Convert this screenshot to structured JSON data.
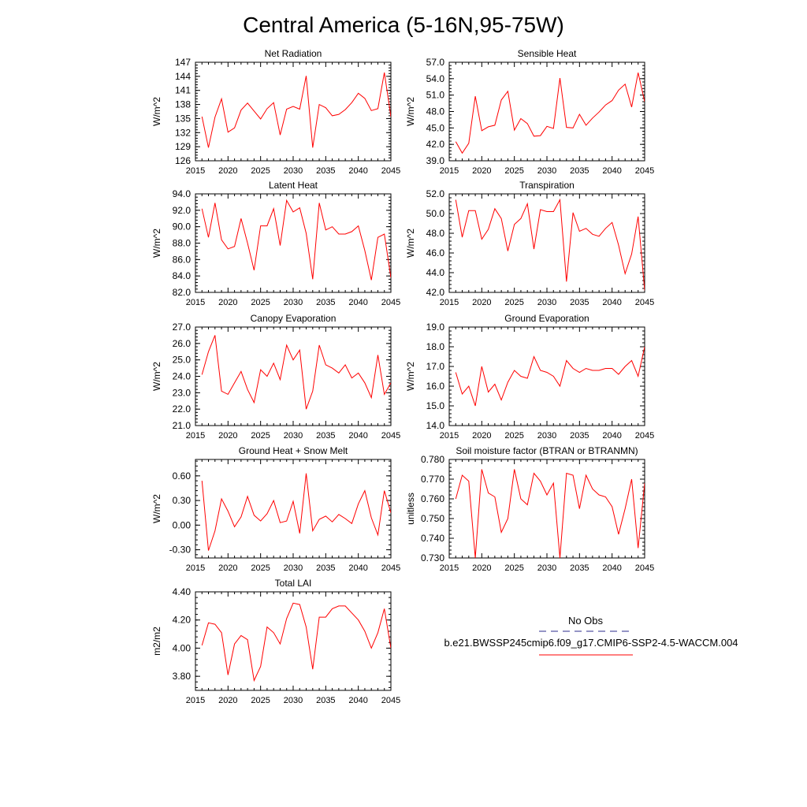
{
  "figure": {
    "title": "Central America (5-16N,95-75W)"
  },
  "legend": {
    "obs_label": "No Obs",
    "model_label": "b.e21.BWSSP245cmip6.f09_g17.CMIP6-SSP2-4.5-WACCM.004",
    "obs_color": "#2b2b8c",
    "model_color": "#ff0000"
  },
  "chart_data": [
    {
      "id": "net-radiation",
      "type": "line",
      "title": "Net Radiation",
      "ylabel": "W/m^2",
      "xlim": [
        2015,
        2045
      ],
      "ylim": [
        126,
        147
      ],
      "xticks": [
        2015,
        2020,
        2025,
        2030,
        2035,
        2040,
        2045
      ],
      "yticks": [
        126,
        129,
        132,
        135,
        138,
        141,
        144,
        147
      ],
      "ytick_labels": [
        "126",
        "129",
        "132",
        "135",
        "138",
        "141",
        "144",
        "147"
      ],
      "series": [
        {
          "name": "b.e21.BWSSP245cmip6.f09_g17.CMIP6-SSP2-4.5-WACCM.004",
          "color": "#ff0000",
          "x": [
            2016,
            2017,
            2018,
            2019,
            2020,
            2021,
            2022,
            2023,
            2024,
            2025,
            2026,
            2027,
            2028,
            2029,
            2030,
            2031,
            2032,
            2033,
            2034,
            2035,
            2036,
            2037,
            2038,
            2039,
            2040,
            2041,
            2042,
            2043,
            2044,
            2045
          ],
          "values": [
            135.4,
            128.8,
            135.3,
            139.2,
            132.1,
            133,
            136.8,
            138.3,
            136.6,
            134.9,
            137.1,
            138.4,
            131.5,
            137,
            137.6,
            137,
            144.1,
            128.8,
            138,
            137.3,
            135.6,
            135.9,
            136.9,
            138.4,
            140.4,
            139.3,
            136.7,
            137.1,
            144.8,
            135.4
          ]
        }
      ]
    },
    {
      "id": "sensible-heat",
      "type": "line",
      "title": "Sensible Heat",
      "ylabel": "W/m^2",
      "xlim": [
        2015,
        2045
      ],
      "ylim": [
        39,
        57
      ],
      "xticks": [
        2015,
        2020,
        2025,
        2030,
        2035,
        2040,
        2045
      ],
      "yticks": [
        39,
        42,
        45,
        48,
        51,
        54,
        57
      ],
      "ytick_labels": [
        "39.0",
        "42.0",
        "45.0",
        "48.0",
        "51.0",
        "54.0",
        "57.0"
      ],
      "series": [
        {
          "name": "b.e21.BWSSP245cmip6.f09_g17.CMIP6-SSP2-4.5-WACCM.004",
          "color": "#ff0000",
          "x": [
            2016,
            2017,
            2018,
            2019,
            2020,
            2021,
            2022,
            2023,
            2024,
            2025,
            2026,
            2027,
            2028,
            2029,
            2030,
            2031,
            2032,
            2033,
            2034,
            2035,
            2036,
            2037,
            2038,
            2039,
            2040,
            2041,
            2042,
            2043,
            2044,
            2045
          ],
          "values": [
            42.5,
            40.4,
            42.2,
            50.8,
            44.5,
            45.2,
            45.5,
            50.1,
            51.7,
            44.6,
            46.7,
            45.8,
            43.5,
            43.6,
            45.3,
            44.9,
            54.1,
            45.1,
            45,
            47.5,
            45.5,
            46.8,
            47.9,
            49.2,
            50,
            51.9,
            53,
            48.8,
            55.1,
            49.8
          ]
        }
      ]
    },
    {
      "id": "latent-heat",
      "type": "line",
      "title": "Latent Heat",
      "ylabel": "W/m^2",
      "xlim": [
        2015,
        2045
      ],
      "ylim": [
        82,
        94
      ],
      "xticks": [
        2015,
        2020,
        2025,
        2030,
        2035,
        2040,
        2045
      ],
      "yticks": [
        82,
        84,
        86,
        88,
        90,
        92,
        94
      ],
      "ytick_labels": [
        "82.0",
        "84.0",
        "86.0",
        "88.0",
        "90.0",
        "92.0",
        "94.0"
      ],
      "series": [
        {
          "name": "b.e21.BWSSP245cmip6.f09_g17.CMIP6-SSP2-4.5-WACCM.004",
          "color": "#ff0000",
          "x": [
            2016,
            2017,
            2018,
            2019,
            2020,
            2021,
            2022,
            2023,
            2024,
            2025,
            2026,
            2027,
            2028,
            2029,
            2030,
            2031,
            2032,
            2033,
            2034,
            2035,
            2036,
            2037,
            2038,
            2039,
            2040,
            2041,
            2042,
            2043,
            2044,
            2045
          ],
          "values": [
            92.2,
            88.7,
            92.9,
            88.4,
            87.3,
            87.6,
            91,
            88,
            84.7,
            90.1,
            90.1,
            92.2,
            87.7,
            93.2,
            91.8,
            92.3,
            89.2,
            83.6,
            92.9,
            89.6,
            90,
            89.1,
            89.1,
            89.4,
            90.1,
            87.1,
            83.5,
            88.7,
            89.1,
            83.8
          ]
        }
      ]
    },
    {
      "id": "transpiration",
      "type": "line",
      "title": "Transpiration",
      "ylabel": "W/m^2",
      "xlim": [
        2015,
        2045
      ],
      "ylim": [
        42,
        52
      ],
      "xticks": [
        2015,
        2020,
        2025,
        2030,
        2035,
        2040,
        2045
      ],
      "yticks": [
        42,
        44,
        46,
        48,
        50,
        52
      ],
      "ytick_labels": [
        "42.0",
        "44.0",
        "46.0",
        "48.0",
        "50.0",
        "52.0"
      ],
      "series": [
        {
          "name": "b.e21.BWSSP245cmip6.f09_g17.CMIP6-SSP2-4.5-WACCM.004",
          "color": "#ff0000",
          "x": [
            2016,
            2017,
            2018,
            2019,
            2020,
            2021,
            2022,
            2023,
            2024,
            2025,
            2026,
            2027,
            2028,
            2029,
            2030,
            2031,
            2032,
            2033,
            2034,
            2035,
            2036,
            2037,
            2038,
            2039,
            2040,
            2041,
            2042,
            2043,
            2044,
            2045
          ],
          "values": [
            51.4,
            47.6,
            50.3,
            50.3,
            47.4,
            48.4,
            50.5,
            49.5,
            46.2,
            48.9,
            49.5,
            51,
            46.4,
            50.4,
            50.2,
            50.2,
            51.4,
            43.1,
            50.1,
            48.2,
            48.5,
            47.9,
            47.7,
            48.5,
            49.1,
            46.8,
            43.9,
            45.9,
            49.7,
            42.2
          ]
        }
      ]
    },
    {
      "id": "canopy-evaporation",
      "type": "line",
      "title": "Canopy Evaporation",
      "ylabel": "W/m^2",
      "xlim": [
        2015,
        2045
      ],
      "ylim": [
        21,
        27
      ],
      "xticks": [
        2015,
        2020,
        2025,
        2030,
        2035,
        2040,
        2045
      ],
      "yticks": [
        21,
        22,
        23,
        24,
        25,
        26,
        27
      ],
      "ytick_labels": [
        "21.0",
        "22.0",
        "23.0",
        "24.0",
        "25.0",
        "26.0",
        "27.0"
      ],
      "series": [
        {
          "name": "b.e21.BWSSP245cmip6.f09_g17.CMIP6-SSP2-4.5-WACCM.004",
          "color": "#ff0000",
          "x": [
            2016,
            2017,
            2018,
            2019,
            2020,
            2021,
            2022,
            2023,
            2024,
            2025,
            2026,
            2027,
            2028,
            2029,
            2030,
            2031,
            2032,
            2033,
            2034,
            2035,
            2036,
            2037,
            2038,
            2039,
            2040,
            2041,
            2042,
            2043,
            2044,
            2045
          ],
          "values": [
            24.1,
            25.5,
            26.5,
            23.1,
            22.9,
            23.6,
            24.3,
            23.2,
            22.4,
            24.4,
            24,
            24.8,
            23.8,
            25.9,
            25,
            25.6,
            22,
            23.1,
            25.9,
            24.7,
            24.5,
            24.2,
            24.7,
            23.9,
            24.2,
            23.6,
            22.7,
            25.3,
            22.9,
            23.6
          ]
        }
      ]
    },
    {
      "id": "ground-evaporation",
      "type": "line",
      "title": "Ground Evaporation",
      "ylabel": "W/m^2",
      "xlim": [
        2015,
        2045
      ],
      "ylim": [
        14,
        19
      ],
      "xticks": [
        2015,
        2020,
        2025,
        2030,
        2035,
        2040,
        2045
      ],
      "yticks": [
        14,
        15,
        16,
        17,
        18,
        19
      ],
      "ytick_labels": [
        "14.0",
        "15.0",
        "16.0",
        "17.0",
        "18.0",
        "19.0"
      ],
      "series": [
        {
          "name": "b.e21.BWSSP245cmip6.f09_g17.CMIP6-SSP2-4.5-WACCM.004",
          "color": "#ff0000",
          "x": [
            2016,
            2017,
            2018,
            2019,
            2020,
            2021,
            2022,
            2023,
            2024,
            2025,
            2026,
            2027,
            2028,
            2029,
            2030,
            2031,
            2032,
            2033,
            2034,
            2035,
            2036,
            2037,
            2038,
            2039,
            2040,
            2041,
            2042,
            2043,
            2044,
            2045
          ],
          "values": [
            16.7,
            15.6,
            16,
            15,
            17,
            15.7,
            16.1,
            15.3,
            16.2,
            16.8,
            16.5,
            16.4,
            17.5,
            16.8,
            16.7,
            16.5,
            16,
            17.3,
            16.9,
            16.7,
            16.9,
            16.8,
            16.8,
            16.9,
            16.9,
            16.6,
            17,
            17.3,
            16.5,
            18
          ]
        }
      ]
    },
    {
      "id": "ground-heat-snow-melt",
      "type": "line",
      "title": "Ground Heat + Snow Melt",
      "ylabel": "W/m^2",
      "xlim": [
        2015,
        2045
      ],
      "ylim": [
        -0.4,
        0.8
      ],
      "xticks": [
        2015,
        2020,
        2025,
        2030,
        2035,
        2040,
        2045
      ],
      "yticks": [
        -0.3,
        0.0,
        0.3,
        0.6
      ],
      "ytick_labels": [
        "-0.30",
        "0.00",
        "0.30",
        "0.60"
      ],
      "series": [
        {
          "name": "b.e21.BWSSP245cmip6.f09_g17.CMIP6-SSP2-4.5-WACCM.004",
          "color": "#ff0000",
          "x": [
            2016,
            2017,
            2018,
            2019,
            2020,
            2021,
            2022,
            2023,
            2024,
            2025,
            2026,
            2027,
            2028,
            2029,
            2030,
            2031,
            2032,
            2033,
            2034,
            2035,
            2036,
            2037,
            2038,
            2039,
            2040,
            2041,
            2042,
            2043,
            2044,
            2045
          ],
          "values": [
            0.54,
            -0.31,
            -0.07,
            0.32,
            0.17,
            -0.02,
            0.1,
            0.35,
            0.12,
            0.05,
            0.14,
            0.3,
            0.03,
            0.05,
            0.29,
            -0.1,
            0.63,
            -0.07,
            0.07,
            0.11,
            0.04,
            0.13,
            0.08,
            0.02,
            0.26,
            0.42,
            0.09,
            -0.12,
            0.42,
            0.15
          ]
        }
      ]
    },
    {
      "id": "soil-moisture-factor",
      "type": "line",
      "title": "Soil moisture factor (BTRAN or BTRANMN)",
      "ylabel": "unitless",
      "xlim": [
        2015,
        2045
      ],
      "ylim": [
        0.73,
        0.78
      ],
      "xticks": [
        2015,
        2020,
        2025,
        2030,
        2035,
        2040,
        2045
      ],
      "yticks": [
        0.73,
        0.74,
        0.75,
        0.76,
        0.77,
        0.78
      ],
      "ytick_labels": [
        "0.730",
        "0.740",
        "0.750",
        "0.760",
        "0.770",
        "0.780"
      ],
      "series": [
        {
          "name": "b.e21.BWSSP245cmip6.f09_g17.CMIP6-SSP2-4.5-WACCM.004",
          "color": "#ff0000",
          "x": [
            2016,
            2017,
            2018,
            2019,
            2020,
            2021,
            2022,
            2023,
            2024,
            2025,
            2026,
            2027,
            2028,
            2029,
            2030,
            2031,
            2032,
            2033,
            2034,
            2035,
            2036,
            2037,
            2038,
            2039,
            2040,
            2041,
            2042,
            2043,
            2044,
            2045
          ],
          "values": [
            0.76,
            0.772,
            0.769,
            0.73,
            0.775,
            0.763,
            0.761,
            0.743,
            0.75,
            0.775,
            0.76,
            0.757,
            0.773,
            0.769,
            0.762,
            0.768,
            0.73,
            0.773,
            0.772,
            0.755,
            0.772,
            0.765,
            0.762,
            0.761,
            0.756,
            0.742,
            0.755,
            0.77,
            0.735,
            0.768
          ]
        }
      ]
    },
    {
      "id": "total-lai",
      "type": "line",
      "title": "Total LAI",
      "ylabel": "m2/m2",
      "xlim": [
        2015,
        2045
      ],
      "ylim": [
        3.7,
        4.4
      ],
      "xticks": [
        2015,
        2020,
        2025,
        2030,
        2035,
        2040,
        2045
      ],
      "yticks": [
        3.8,
        4.0,
        4.2,
        4.4
      ],
      "ytick_labels": [
        "3.80",
        "4.00",
        "4.20",
        "4.40"
      ],
      "series": [
        {
          "name": "b.e21.BWSSP245cmip6.f09_g17.CMIP6-SSP2-4.5-WACCM.004",
          "color": "#ff0000",
          "x": [
            2016,
            2017,
            2018,
            2019,
            2020,
            2021,
            2022,
            2023,
            2024,
            2025,
            2026,
            2027,
            2028,
            2029,
            2030,
            2031,
            2032,
            2033,
            2034,
            2035,
            2036,
            2037,
            2038,
            2039,
            2040,
            2041,
            2042,
            2043,
            2044,
            2045
          ],
          "values": [
            4.02,
            4.18,
            4.17,
            4.11,
            3.81,
            4.03,
            4.09,
            4.06,
            3.77,
            3.87,
            4.15,
            4.11,
            4.03,
            4.21,
            4.32,
            4.31,
            4.15,
            3.85,
            4.22,
            4.22,
            4.28,
            4.3,
            4.3,
            4.25,
            4.2,
            4.12,
            4,
            4.11,
            4.28,
            4
          ]
        }
      ]
    }
  ]
}
